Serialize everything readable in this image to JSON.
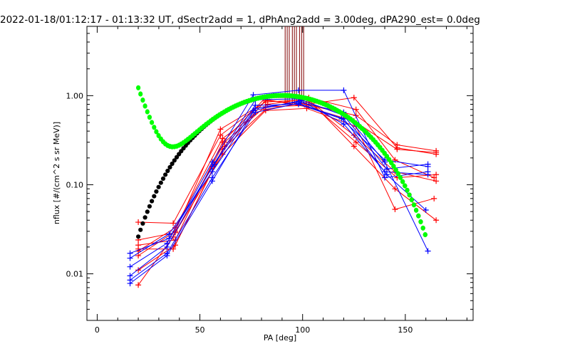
{
  "chart_data": {
    "type": "scatter",
    "title": "2022-01-18/01:12:17 - 01:13:32 UT, dSectr2add = 1, dPhAng2add = 3.00deg, dPA290_est=    0.0deg",
    "xlabel": "PA [deg]",
    "ylabel": "nflux [#/(cm^2 s sr MeV)]",
    "xlim": [
      -5,
      183
    ],
    "ylim": [
      0.003,
      6.0
    ],
    "yscale": "log",
    "grid": false,
    "x_ticks": [
      0,
      50,
      100,
      150
    ],
    "x_tick_labels": [
      "0",
      "50",
      "100",
      "150"
    ],
    "y_ticks": [
      0.01,
      0.1,
      1.0
    ],
    "y_tick_labels": [
      "0.01",
      "0.10",
      "1.00"
    ],
    "colors": {
      "red": "#ff0000",
      "blue": "#0000ff",
      "black": "#000000",
      "green": "#00ff00"
    },
    "series": [
      {
        "color": "red",
        "x": [
          20,
          37,
          62,
          83,
          102,
          125,
          145,
          165
        ],
        "y": [
          0.0075,
          0.026,
          0.3,
          0.8,
          0.92,
          0.36,
          0.14,
          0.11
        ]
      },
      {
        "color": "red",
        "x": [
          20,
          38,
          61,
          82,
          103,
          126,
          146,
          165
        ],
        "y": [
          0.011,
          0.021,
          0.25,
          0.7,
          0.85,
          0.3,
          0.12,
          0.13
        ]
      },
      {
        "color": "red",
        "x": [
          20,
          38,
          60,
          82,
          103,
          125,
          145,
          165
        ],
        "y": [
          0.016,
          0.03,
          0.42,
          0.85,
          0.9,
          0.27,
          0.09,
          0.04
        ]
      },
      {
        "color": "red",
        "x": [
          20,
          38,
          61,
          82,
          102,
          126,
          145,
          164
        ],
        "y": [
          0.024,
          0.029,
          0.22,
          0.68,
          0.72,
          0.45,
          0.053,
          0.07
        ]
      },
      {
        "color": "red",
        "x": [
          20,
          37,
          60,
          83,
          102,
          125,
          146,
          165
        ],
        "y": [
          0.038,
          0.037,
          0.36,
          0.9,
          0.75,
          0.52,
          0.25,
          0.23
        ]
      },
      {
        "color": "red",
        "x": [
          20,
          38,
          61,
          82,
          103,
          126,
          146,
          165
        ],
        "y": [
          0.018,
          0.033,
          0.33,
          0.75,
          0.78,
          0.6,
          0.28,
          0.24
        ]
      },
      {
        "color": "red",
        "x": [
          20,
          37,
          62,
          82,
          102,
          125,
          146,
          165
        ],
        "y": [
          0.019,
          0.019,
          0.27,
          0.88,
          0.8,
          0.95,
          0.26,
          0.22
        ]
      },
      {
        "color": "red",
        "x": [
          20,
          38,
          61,
          82,
          103,
          126,
          145,
          164
        ],
        "y": [
          0.021,
          0.024,
          0.3,
          0.95,
          0.95,
          0.7,
          0.19,
          0.12
        ]
      },
      {
        "color": "blue",
        "x": [
          16,
          34,
          56,
          77,
          98,
          120,
          140,
          161
        ],
        "y": [
          0.0078,
          0.016,
          0.11,
          0.72,
          0.85,
          0.65,
          0.18,
          0.018
        ]
      },
      {
        "color": "blue",
        "x": [
          16,
          34,
          56,
          77,
          98,
          120,
          141,
          160
        ],
        "y": [
          0.0085,
          0.017,
          0.12,
          0.65,
          0.82,
          0.55,
          0.13,
          0.052
        ]
      },
      {
        "color": "blue",
        "x": [
          16,
          34,
          56,
          76,
          98,
          120,
          140,
          161
        ],
        "y": [
          0.012,
          0.022,
          0.18,
          1.02,
          1.15,
          1.15,
          0.12,
          0.14
        ]
      },
      {
        "color": "blue",
        "x": [
          16,
          35,
          57,
          77,
          98,
          119,
          140,
          161
        ],
        "y": [
          0.017,
          0.025,
          0.17,
          0.78,
          0.8,
          0.55,
          0.19,
          0.16
        ]
      },
      {
        "color": "blue",
        "x": [
          16,
          35,
          56,
          76,
          99,
          120,
          140,
          161
        ],
        "y": [
          0.015,
          0.028,
          0.14,
          0.68,
          0.88,
          0.48,
          0.14,
          0.13
        ]
      },
      {
        "color": "blue",
        "x": [
          16,
          34,
          56,
          77,
          98,
          120,
          141,
          161
        ],
        "y": [
          0.0095,
          0.02,
          0.16,
          0.9,
          0.92,
          0.6,
          0.15,
          0.17
        ]
      }
    ],
    "black_fit": {
      "x_start": 20,
      "x_end": 160,
      "peak_x": 97,
      "peak_y": 0.98,
      "sin_exponent": 3.4
    },
    "green_fit": {
      "x_start": 20,
      "x_end": 160,
      "peak_x": 97,
      "peak_y": 0.98,
      "sin_exponent": 3.4,
      "loss_cone_amp": 1.2,
      "loss_cone_decay_deg": 6.5
    },
    "vertical_markers": {
      "color": "#800000",
      "x": [
        91.5,
        92.5,
        93.5,
        95,
        96,
        97,
        98.5,
        99.5,
        100.5
      ],
      "y_bottom": 0.8
    }
  }
}
